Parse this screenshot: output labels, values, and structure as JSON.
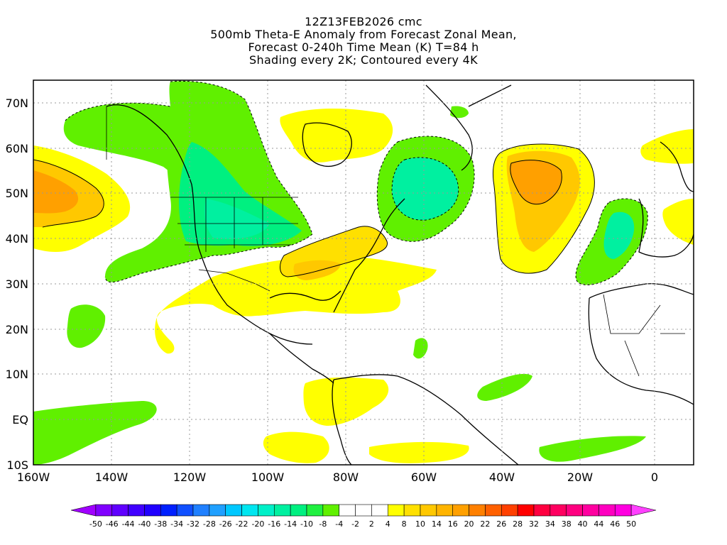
{
  "title": {
    "line1": "12Z13FEB2026 cmc",
    "line2": "500mb Theta-E Anomaly from Forecast Zonal Mean,",
    "line3": "Forecast 0-240h Time Mean (K) T=84 h",
    "line4": "Shading every 2K; Contoured every 4K"
  },
  "map": {
    "lon_ticks": [
      "160W",
      "140W",
      "120W",
      "100W",
      "80W",
      "60W",
      "40W",
      "20W",
      "0"
    ],
    "lat_ticks": [
      "70N",
      "60N",
      "50N",
      "40N",
      "30N",
      "20N",
      "10N",
      "EQ",
      "10S"
    ],
    "lon_range": [
      -160,
      10
    ],
    "lat_range": [
      -10,
      75
    ],
    "gridlines": "dotted"
  },
  "colorbar": {
    "labels": [
      "-50",
      "-46",
      "-44",
      "-40",
      "-38",
      "-34",
      "-32",
      "-28",
      "-26",
      "-22",
      "-20",
      "-16",
      "-14",
      "-10",
      "-8",
      "-4",
      "-2",
      "2",
      "4",
      "8",
      "10",
      "14",
      "16",
      "20",
      "22",
      "26",
      "28",
      "32",
      "34",
      "38",
      "40",
      "44",
      "46",
      "50"
    ],
    "colors": [
      "#a000ff",
      "#8000ff",
      "#6000ff",
      "#4000ff",
      "#2000ff",
      "#0020ff",
      "#1050ff",
      "#2080ff",
      "#20a0ff",
      "#00c8ff",
      "#00e6f0",
      "#00f0c8",
      "#00f0a0",
      "#00f080",
      "#20f040",
      "#60f000",
      "#ffffff",
      "#ffffff",
      "#ffffff",
      "#ffff00",
      "#ffe000",
      "#ffc800",
      "#ffb400",
      "#ffa000",
      "#ff8000",
      "#ff6000",
      "#ff4000",
      "#ff0000",
      "#ff0040",
      "#ff0060",
      "#ff0080",
      "#ff00a0",
      "#ff00c0",
      "#ff00e0",
      "#ff40ff"
    ]
  }
}
